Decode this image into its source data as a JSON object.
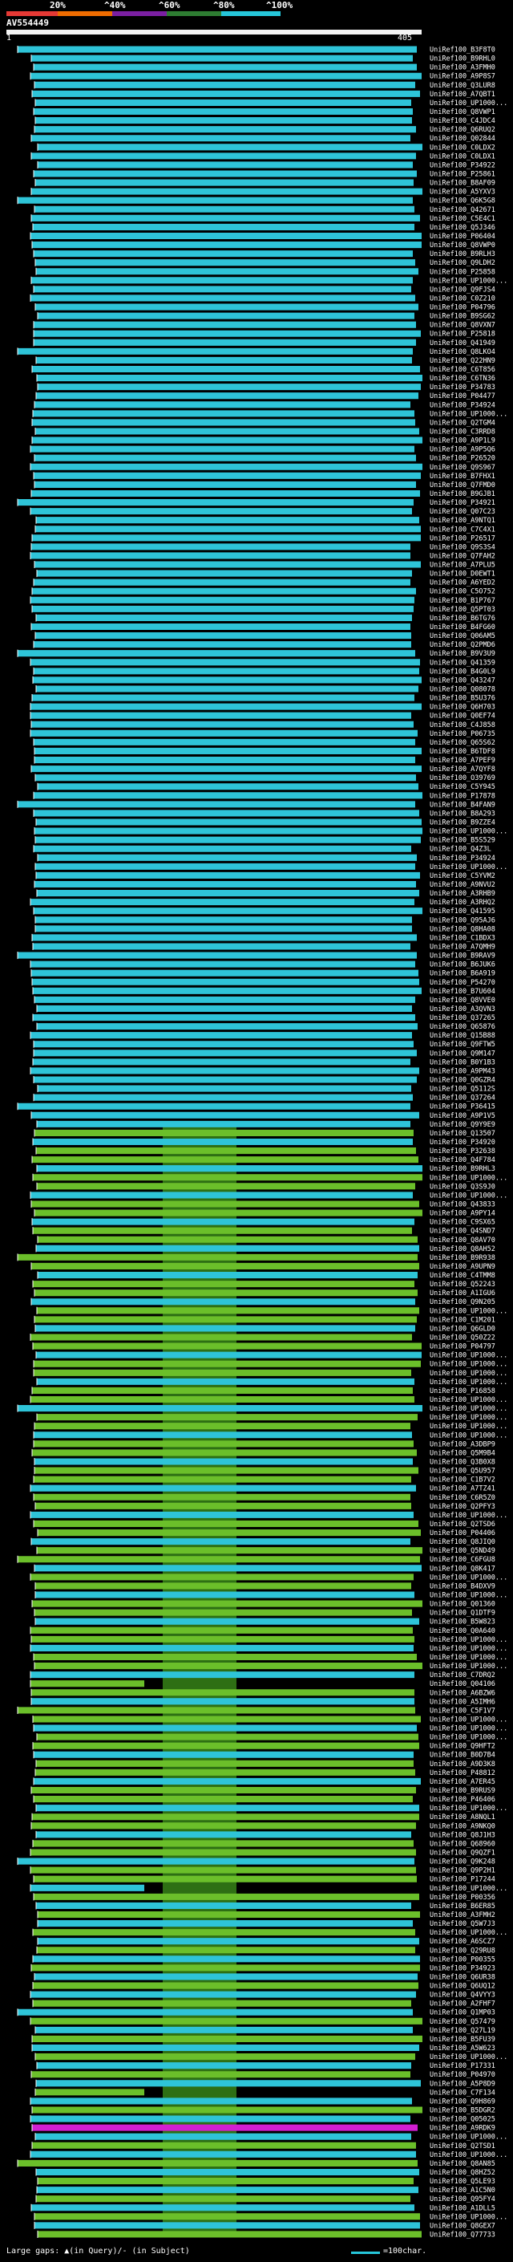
{
  "query": {
    "id": "AV554449",
    "start": "1",
    "end": "405"
  },
  "scale": {
    "labels": [
      "20%",
      "^40%",
      "^60%",
      "^80%",
      "^100%"
    ],
    "colors": [
      "#e53935",
      "#ef6c00",
      "#7b1fa2",
      "#2e7d32",
      "#26c6da"
    ]
  },
  "colors": {
    "cyan": "#2ec4d8",
    "green": "#6bbf2a",
    "magenta": "#d21fd2",
    "background": "#000000"
  },
  "footer": {
    "large_gaps": "Large gaps: ▲(in Query)/- (in Subject)",
    "scale_note": "=100char."
  },
  "hit_ids": [
    "UniRef100_B3F8T0",
    "UniRef100_B9RHL0",
    "UniRef100_A3FMH0",
    "UniRef100_A9P8S7",
    "UniRef100_Q3LUR8",
    "UniRef100_A7QBT1",
    "UniRef100_UP1000...",
    "UniRef100_Q8VWP1",
    "UniRef100_C4JDC4",
    "UniRef100_Q6RUQ2",
    "UniRef100_Q02844",
    "UniRef100_C0LDX2",
    "UniRef100_C0LDX1",
    "UniRef100_P34922",
    "UniRef100_P25861",
    "UniRef100_B8AF09",
    "UniRef100_A5YXV3",
    "UniRef100_Q6K5G8",
    "UniRef100_Q42671",
    "UniRef100_C5E4C1",
    "UniRef100_Q5J346",
    "UniRef100_P06404",
    "UniRef100_Q8VWP0",
    "UniRef100_B9RLH3",
    "UniRef100_Q9LDH2",
    "UniRef100_P25858",
    "UniRef100_UP1000...",
    "UniRef100_Q9FJS4",
    "UniRef100_C0Z210",
    "UniRef100_P04796",
    "UniRef100_B9SG62",
    "UniRef100_Q8VXN7",
    "UniRef100_P25818",
    "UniRef100_Q41949",
    "UniRef100_Q8LKO4",
    "UniRef100_Q22HN9",
    "UniRef100_C6T856",
    "UniRef100_C6TN36",
    "UniRef100_P34783",
    "UniRef100_P04477",
    "UniRef100_P34924",
    "UniRef100_UP1000...",
    "UniRef100_Q2TGM4",
    "UniRef100_C3RRD8",
    "UniRef100_A9P1L9",
    "UniRef100_A9P5Q6",
    "UniRef100_P26520",
    "UniRef100_Q9S967",
    "UniRef100_B7FHX1",
    "UniRef100_Q7FMD0",
    "UniRef100_B9GJB1",
    "UniRef100_P34921",
    "UniRef100_Q07C23",
    "UniRef100_A9NTQ1",
    "UniRef100_C7C4X1",
    "UniRef100_P26517",
    "UniRef100_Q9S3S4",
    "UniRef100_Q7FAH2",
    "UniRef100_A7PLU5",
    "UniRef100_D0EWT1",
    "UniRef100_A6YED2",
    "UniRef100_C5O752",
    "UniRef100_B1P767",
    "UniRef100_Q5PT03",
    "UniRef100_B6TG76",
    "UniRef100_B4FG60",
    "UniRef100_Q06AM5",
    "UniRef100_Q2PMD6",
    "UniRef100_B9V3U9",
    "UniRef100_Q41359",
    "UniRef100_B4G0L9",
    "UniRef100_Q43247",
    "UniRef100_Q08078",
    "UniRef100_B5U376",
    "UniRef100_Q6H703",
    "UniRef100_Q0EF74",
    "UniRef100_C4J858",
    "UniRef100_P06735",
    "UniRef100_Q65S62",
    "UniRef100_B6TDF8",
    "UniRef100_A7PEF9",
    "UniRef100_A7QYF8",
    "UniRef100_O39769",
    "UniRef100_C5Y945",
    "UniRef100_P17878",
    "UniRef100_B4FAN9",
    "UniRef100_B8A293",
    "UniRef100_B9ZZE4",
    "UniRef100_UP1000...",
    "UniRef100_B5S529",
    "UniRef100_Q4Z3L",
    "UniRef100_P34924",
    "UniRef100_UP1000...",
    "UniRef100_C5YVM2",
    "UniRef100_A9NVU2",
    "UniRef100_A3RHB9",
    "UniRef100_A3RHQ2",
    "UniRef100_Q41595",
    "UniRef100_Q95AJ6",
    "UniRef100_Q8HA08",
    "UniRef100_C1BDX3",
    "UniRef100_A7QMH9",
    "UniRef100_B9RAV9",
    "UniRef100_B6JUK6",
    "UniRef100_B6A919",
    "UniRef100_P54270",
    "UniRef100_B7U604",
    "UniRef100_Q8VVE0",
    "UniRef100_A3QVN3",
    "UniRef100_Q37265",
    "UniRef100_Q65876",
    "UniRef100_Q15B88",
    "UniRef100_Q9FTW5",
    "UniRef100_Q9M147",
    "UniRef100_B0Y1B3",
    "UniRef100_A9PM43",
    "UniRef100_Q0GZR4",
    "UniRef100_Q5112S",
    "UniRef100_Q37264",
    "UniRef100_P36415",
    "UniRef100_A9P1V5",
    "UniRef100_Q9Y9E9",
    "UniRef100_Q13507",
    "UniRef100_P34920",
    "UniRef100_P32638",
    "UniRef100_Q4F784",
    "UniRef100_B9RHL3",
    "UniRef100_UP1000...",
    "UniRef100_Q3S9J0",
    "UniRef100_UP1000...",
    "UniRef100_Q43833",
    "UniRef100_A9PY14",
    "UniRef100_C9SX65",
    "UniRef100_Q4SND7",
    "UniRef100_Q8AV70",
    "UniRef100_Q8AH52",
    "UniRef100_B9R938",
    "UniRef100_A9UPN9",
    "UniRef100_C4TMM8",
    "UniRef100_Q52243",
    "UniRef100_A1IGU6",
    "UniRef100_Q9N205",
    "UniRef100_UP1000...",
    "UniRef100_C1M201",
    "UniRef100_Q6GLD0",
    "UniRef100_Q50Z22",
    "UniRef100_P04797",
    "UniRef100_UP1000...",
    "UniRef100_UP1000...",
    "UniRef100_UP1000...",
    "UniRef100_UP1000...",
    "UniRef100_P16858",
    "UniRef100_UP1000...",
    "UniRef100_UP1000...",
    "UniRef100_UP1000...",
    "UniRef100_UP1000...",
    "UniRef100_UP1000...",
    "UniRef100_A3DBP9",
    "UniRef100_Q5M9B4",
    "UniRef100_Q3B0X8",
    "UniRef100_Q5U957",
    "UniRef100_C1B7V2",
    "UniRef100_A7TZ41",
    "UniRef100_C6R5Z0",
    "UniRef100_Q2PFY3",
    "UniRef100_UP1000...",
    "UniRef100_Q2TSD6",
    "UniRef100_P04406",
    "UniRef100_Q8JIQ0",
    "UniRef100_Q5ND49",
    "UniRef100_C6FGU8",
    "UniRef100_Q8K417",
    "UniRef100_UP1000...",
    "UniRef100_B4DXV9",
    "UniRef100_UP1000...",
    "UniRef100_Q01360",
    "UniRef100_Q1DTF9",
    "UniRef100_B5W823",
    "UniRef100_Q0A640",
    "UniRef100_UP1000...",
    "UniRef100_UP1000...",
    "UniRef100_UP1000...",
    "UniRef100_UP1000...",
    "UniRef100_C7DRQ2",
    "UniRef100_Q04106",
    "UniRef100_A6BZW6",
    "UniRef100_A5IMH6",
    "UniRef100_C5F1V7",
    "UniRef100_UP1000...",
    "UniRef100_UP1000...",
    "UniRef100_UP1000...",
    "UniRef100_Q9HFT2",
    "UniRef100_B0D7B4",
    "UniRef100_A9D3K8",
    "UniRef100_P48812",
    "UniRef100_A7ER45",
    "UniRef100_B9RUS9",
    "UniRef100_P46406",
    "UniRef100_UP1000...",
    "UniRef100_A8NQL1",
    "UniRef100_A9NKQ0",
    "UniRef100_Q8J1H3",
    "UniRef100_Q68960",
    "UniRef100_Q9QZF1",
    "UniRef100_Q9K248",
    "UniRef100_Q9P2H1",
    "UniRef100_P17244",
    "UniRef100_UP1000...",
    "UniRef100_P00356",
    "UniRef100_B6ER85",
    "UniRef100_A3FMH2",
    "UniRef100_Q5W7J3",
    "UniRef100_UP1000...",
    "UniRef100_A6SCZ7",
    "UniRef100_Q29RU8",
    "UniRef100_P00355",
    "UniRef100_P34923",
    "UniRef100_Q6UR38",
    "UniRef100_Q6UQ12",
    "UniRef100_Q4VYY3",
    "UniRef100_A2FHF7",
    "UniRef100_Q1MP03",
    "UniRef100_Q57479",
    "UniRef100_Q27L19",
    "UniRef100_B5FU39",
    "UniRef100_A5W623",
    "UniRef100_UP1000...",
    "UniRef100_P17331",
    "UniRef100_P04970",
    "UniRef100_A5P8D9",
    "UniRef100_C7F134",
    "UniRef100_Q9H869",
    "UniRef100_B5DGR2",
    "UniRef100_Q05025",
    "UniRef100_A9RDK9",
    "UniRef100_UP1000...",
    "UniRef100_Q2TSD1",
    "UniRef100_UP1000...",
    "UniRef100_Q8AN85",
    "UniRef100_Q8HZ52",
    "UniRef100_Q5LE93",
    "UniRef100_A1C5N0",
    "UniRef100_Q95FY4",
    "UniRef100_A1DLL5",
    "UniRef100_UP1000...",
    "UniRef100_Q8GEX7",
    "UniRef100_Q77733"
  ]
}
